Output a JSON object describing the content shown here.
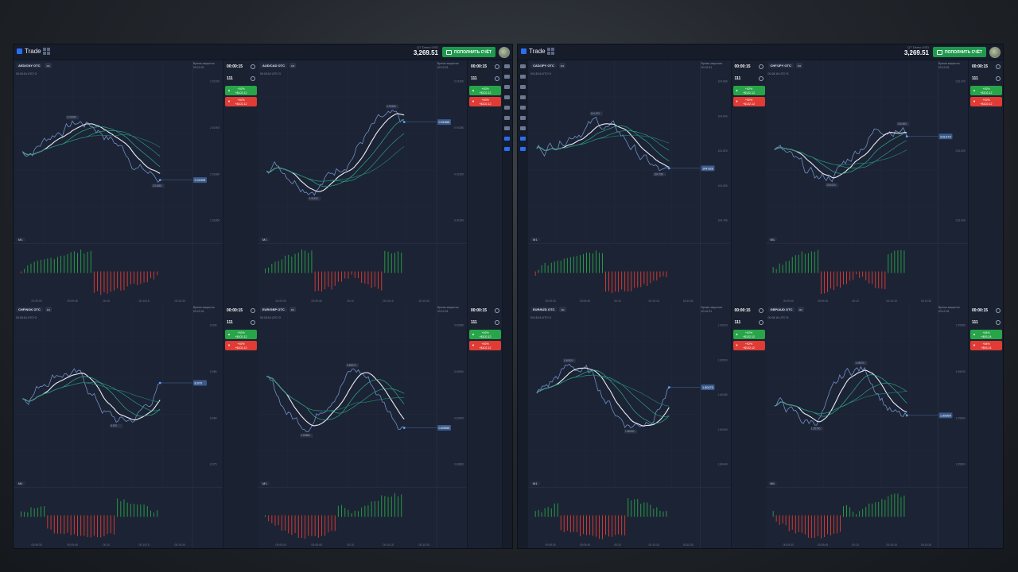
{
  "left_window": {
    "brand": "Trade",
    "account_type": "QT Demo",
    "currency": "USD",
    "balance": "3,269.51",
    "topup_label": "ПОПОЛНИТЬ СЧЁТ",
    "panes": [
      {
        "asset": "AED/CNY OTC",
        "time": "00:18:16 UTC+3",
        "close_label": "Время закрытия",
        "close_time": "00:10:31",
        "timer": "00:00:15",
        "amount": "111",
        "up_pct": "+92%",
        "up_payout": "+$102.12",
        "down_pct": "+92%",
        "down_payout": "+$102.12",
        "tf": "M1",
        "price_tag": "2.01905",
        "price_high": "2.01905",
        "price_low": "2.01863",
        "axis": [
          "2.01920",
          "2.01900",
          "2.01880",
          "2.01860"
        ],
        "xaxis": [
          "00:09:00",
          "00:09:45",
          "00:10",
          "00:10:15",
          "00:10:30"
        ]
      },
      {
        "asset": "AUD/CAD OTC",
        "time": "00:18:16 UTC+3",
        "close_label": "Время закрытия",
        "close_time": "00:10:31",
        "timer": "00:00:15",
        "amount": "111",
        "up_pct": "+92%",
        "up_payout": "+$102.12",
        "down_pct": "+92%",
        "down_payout": "+$102.12",
        "tf": "M1",
        "price_tag": "0.91565",
        "price_high": "0.91580",
        "price_low": "0.91510",
        "axis": [
          "0.91600",
          "0.91580",
          "0.91560",
          "0.91540"
        ],
        "xaxis": [
          "00:09:30",
          "00:09:45",
          "00:10",
          "00:10:15",
          "00:10:30"
        ]
      },
      {
        "asset": "CHF/NOK OTC",
        "time": "00:18:16 UTC+3",
        "close_label": "Время закрытия",
        "close_time": "00:10:31",
        "timer": "00:00:15",
        "amount": "111",
        "up_pct": "+92%",
        "up_payout": "+$102.12",
        "down_pct": "+92%",
        "down_payout": "+$102.12",
        "tf": "M1",
        "price_tag": "8.970",
        "price_high": "",
        "price_low": "8.970",
        "axis": [
          "8.990",
          "8.985",
          "8.980",
          "8.975"
        ],
        "xaxis": [
          "00:09:30",
          "00:09:45",
          "00:10",
          "00:10:15",
          "00:10:30"
        ]
      },
      {
        "asset": "EUR/GBP OTC",
        "time": "00:18:16 UTC+3",
        "close_label": "Время закрытия",
        "close_time": "00:10:31",
        "timer": "00:00:15",
        "amount": "111",
        "up_pct": "+92%",
        "up_payout": "+$102.12",
        "down_pct": "+92%",
        "down_payout": "+$102.12",
        "tf": "M1",
        "price_tag": "0.83955",
        "price_high": "0.83970",
        "price_low": "0.83860",
        "axis": [
          "0.83980",
          "0.83940",
          "0.83900",
          "0.83860"
        ],
        "xaxis": [
          "00:09:30",
          "00:09:45",
          "00:10",
          "00:10:15",
          "00:10:30"
        ]
      }
    ]
  },
  "right_window": {
    "brand": "Trade",
    "account_type": "QT Demo",
    "currency": "USD",
    "balance": "3,269.51",
    "topup_label": "ПОПОЛНИТЬ СЧЁТ",
    "panes": [
      {
        "asset": "CAD/JPY OTC",
        "time": "00:18:16 UTC+3",
        "close_label": "Время закрытия",
        "close_time": "00:10:31",
        "timer": "00:00:15",
        "amount": "111",
        "up_pct": "+92%",
        "up_payout": "+$102.12",
        "down_pct": "+92%",
        "down_payout": "+$102.12",
        "tf": "M1",
        "price_tag": "104.828",
        "price_high": "104.870",
        "price_low": "104.780",
        "axis": [
          "104.880",
          "104.840",
          "104.820",
          "104.800",
          "104.780"
        ],
        "xaxis": [
          "00:09:30",
          "00:09:45",
          "00:10",
          "00:10:15",
          "00:10:30"
        ]
      },
      {
        "asset": "CHF/JPY OTC",
        "time": "00:18:16 UTC+3",
        "close_label": "Время закрытия",
        "close_time": "00:10:31",
        "timer": "00:00:15",
        "amount": "111",
        "up_pct": "+92%",
        "up_payout": "+$102.12",
        "down_pct": "+92%",
        "down_payout": "+$102.12",
        "tf": "M1",
        "price_tag": "215.474",
        "price_high": "215.800",
        "price_low": "215.020",
        "axis": [
          "216.000",
          "215.500",
          "215.000"
        ],
        "xaxis": [
          "00:09:30",
          "00:09:45",
          "00:10",
          "00:10:15",
          "00:10:30"
        ]
      },
      {
        "asset": "EUR/NZD OTC",
        "time": "00:18:16 UTC+3",
        "close_label": "Время закрытия",
        "close_time": "00:10:31",
        "timer": "00:00:15",
        "amount": "111",
        "up_pct": "+92%",
        "up_payout": "+$102.12",
        "down_pct": "+92%",
        "down_payout": "+$102.12",
        "tf": "M1",
        "price_tag": "1.80475",
        "price_high": "1.80520",
        "price_low": "1.80430",
        "axis": [
          "1.80520",
          "1.80500",
          "1.80480",
          "1.80460",
          "1.80440"
        ],
        "xaxis": [
          "00:09:30",
          "00:09:45",
          "00:10",
          "00:10:15",
          "00:10:30"
        ]
      },
      {
        "asset": "GBP/AUD OTC",
        "time": "00:18:16 UTC+3",
        "close_label": "Время закрытия",
        "close_time": "00:10:31",
        "timer": "00:00:15",
        "amount": "111",
        "up_pct": "+84%",
        "up_payout": "+$93.24",
        "down_pct": "+84%",
        "down_payout": "+$93.24",
        "tf": "M1",
        "price_tag": "1.95964",
        "price_high": "1.95970",
        "price_low": "1.95760",
        "axis": [
          "1.95980",
          "1.95920",
          "1.95860",
          "1.95800"
        ],
        "xaxis": [
          "00:09:30",
          "00:09:45",
          "00:10",
          "00:10:15",
          "00:10:30"
        ]
      }
    ]
  },
  "colors": {
    "up": "#27a548",
    "down": "#e03b35",
    "price_line": "#6f8fc8",
    "ma": "#2fa88f",
    "ma_white": "#e8edf5",
    "accent": "#2a6ef0"
  },
  "sidebar_icons": [
    "chart-icon",
    "dollar-icon",
    "user-icon",
    "cart-icon",
    "trophy-icon",
    "chat-icon",
    "help-icon",
    "signal-icon",
    "settings-icon"
  ]
}
